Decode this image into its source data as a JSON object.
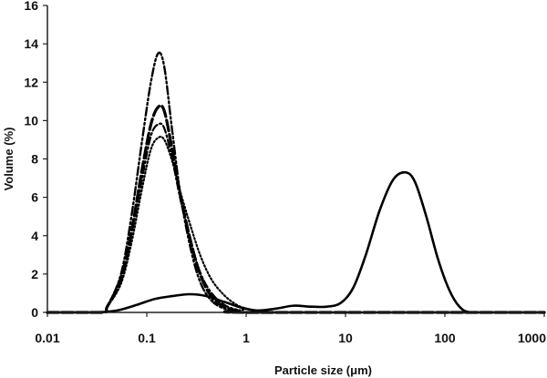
{
  "chart_data": {
    "type": "line",
    "title": "",
    "xlabel": "Particle size (μm)",
    "ylabel": "Volume (%)",
    "xscale": "log",
    "xlim": [
      0.01,
      1000
    ],
    "ylim": [
      0,
      16
    ],
    "xticks": [
      0.01,
      0.1,
      1,
      10,
      100,
      1000
    ],
    "xtick_labels": [
      "0.01",
      "0.1",
      "1",
      "10",
      "100",
      "1000"
    ],
    "yticks": [
      0,
      2,
      4,
      6,
      8,
      10,
      12,
      14,
      16
    ],
    "ytick_labels": [
      "0",
      "2",
      "4",
      "6",
      "8",
      "10",
      "12",
      "14",
      "16"
    ],
    "grid": false,
    "legend": "none",
    "series": [
      {
        "style": "solid",
        "x": [
          0.01,
          0.03,
          0.05,
          0.08,
          0.12,
          0.18,
          0.27,
          0.4,
          0.6,
          0.9,
          1.3,
          2.0,
          3.0,
          4.5,
          6.5,
          9.0,
          12,
          16,
          22,
          30,
          40,
          50,
          65,
          85,
          110,
          140,
          180,
          300,
          1000
        ],
        "y": [
          0,
          0,
          0.1,
          0.4,
          0.7,
          0.85,
          0.95,
          0.85,
          0.55,
          0.25,
          0.1,
          0.2,
          0.35,
          0.3,
          0.3,
          0.5,
          1.3,
          3.0,
          5.3,
          6.9,
          7.3,
          6.8,
          5.0,
          2.8,
          1.2,
          0.3,
          0,
          0,
          0
        ]
      },
      {
        "style": "dash-dot-dot",
        "x": [
          0.01,
          0.035,
          0.04,
          0.055,
          0.07,
          0.09,
          0.11,
          0.13,
          0.15,
          0.18,
          0.22,
          0.28,
          0.35,
          0.45,
          0.6,
          0.8,
          1.1,
          1000
        ],
        "y": [
          0,
          0,
          0.3,
          2.0,
          5.0,
          9.0,
          12.0,
          13.5,
          12.8,
          9.5,
          6.0,
          3.2,
          1.5,
          0.6,
          0.2,
          0.05,
          0,
          0
        ]
      },
      {
        "style": "long-dash",
        "x": [
          0.01,
          0.035,
          0.04,
          0.055,
          0.07,
          0.09,
          0.11,
          0.13,
          0.15,
          0.18,
          0.22,
          0.28,
          0.35,
          0.45,
          0.6,
          0.8,
          1.1,
          1000
        ],
        "y": [
          0,
          0,
          0.3,
          1.8,
          4.2,
          7.5,
          9.8,
          10.7,
          10.5,
          8.5,
          6.0,
          3.6,
          1.9,
          0.8,
          0.3,
          0.1,
          0,
          0
        ]
      },
      {
        "style": "dash-dot",
        "x": [
          0.01,
          0.035,
          0.04,
          0.055,
          0.07,
          0.09,
          0.11,
          0.13,
          0.15,
          0.18,
          0.22,
          0.28,
          0.35,
          0.45,
          0.6,
          0.8,
          1.2,
          1000
        ],
        "y": [
          0,
          0,
          0.3,
          1.6,
          4.0,
          7.0,
          9.2,
          9.8,
          9.6,
          8.0,
          5.8,
          3.6,
          2.0,
          1.0,
          0.4,
          0.15,
          0,
          0
        ]
      },
      {
        "style": "dotted",
        "x": [
          0.01,
          0.035,
          0.04,
          0.055,
          0.07,
          0.09,
          0.11,
          0.13,
          0.15,
          0.18,
          0.22,
          0.28,
          0.35,
          0.45,
          0.6,
          0.8,
          1.0,
          1.4,
          1000
        ],
        "y": [
          0,
          0,
          0.3,
          1.5,
          3.6,
          6.5,
          8.5,
          9.1,
          9.0,
          7.9,
          6.2,
          4.4,
          2.9,
          1.7,
          0.9,
          0.4,
          0.2,
          0,
          0
        ]
      }
    ]
  }
}
